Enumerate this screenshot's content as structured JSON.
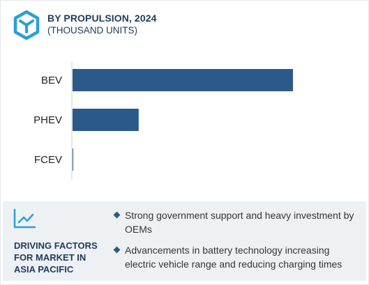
{
  "header": {
    "title": "BY PROPULSION, 2024",
    "subtitle": "(THOUSAND UNITS)",
    "logo_icon": "cube-icon"
  },
  "chart_data": {
    "type": "bar",
    "orientation": "horizontal",
    "title": "BY PROPULSION, 2024",
    "subtitle": "(THOUSAND UNITS)",
    "categories": [
      "BEV",
      "PHEV",
      "FCEV"
    ],
    "values": [
      100,
      30,
      0.2
    ],
    "value_scale": "relative (no axis shown)",
    "bar_color": "#2b5a8a",
    "axis_color": "#cccccc",
    "grid": false,
    "legend": "none"
  },
  "drivers": {
    "icon": "trend-line-icon",
    "heading": [
      "DRIVING FACTORS",
      "FOR MARKET IN",
      "ASIA PACIFIC"
    ],
    "items": [
      "Strong government support and heavy investment by OEMs",
      "Advancements in battery technology increasing electric vehicle range and reducing charging times"
    ]
  },
  "colors": {
    "accent": "#2b5a8a",
    "heading": "#1f3b5c",
    "panel_bg": "#eef1f4",
    "logo": "#2a9fd6"
  }
}
